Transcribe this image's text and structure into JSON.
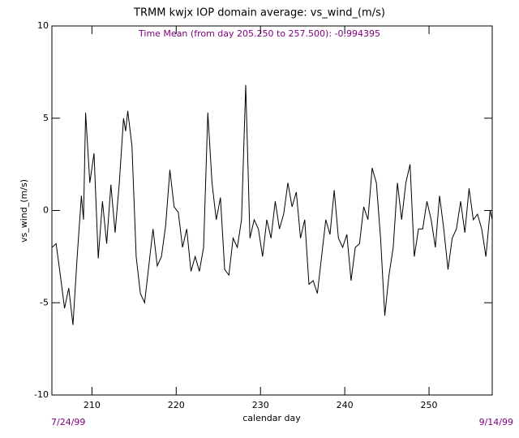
{
  "chart_data": {
    "type": "line",
    "title": "TRMM kwjx IOP domain average: vs_wind_(m/s)",
    "subtitle": "Time Mean (from day 205.250 to 257.500): -0.994395",
    "xlabel": "calendar day",
    "ylabel": "vs_wind_(m/s)",
    "start_label": "7/24/99",
    "end_label": "9/14/99",
    "x": [
      205.25,
      205.75,
      206.25,
      206.75,
      207.25,
      207.75,
      208.25,
      208.75,
      209.0,
      209.25,
      209.75,
      210.25,
      210.75,
      211.25,
      211.75,
      212.25,
      212.75,
      213.25,
      213.75,
      214.0,
      214.25,
      214.75,
      215.25,
      215.75,
      216.25,
      216.75,
      217.25,
      217.75,
      218.25,
      218.75,
      219.25,
      219.75,
      220.25,
      220.75,
      221.25,
      221.75,
      222.25,
      222.75,
      223.25,
      223.75,
      224.25,
      224.75,
      225.25,
      225.75,
      226.25,
      226.75,
      227.25,
      227.75,
      228.25,
      228.75,
      229.25,
      229.75,
      230.25,
      230.75,
      231.25,
      231.75,
      232.25,
      232.75,
      233.25,
      233.75,
      234.25,
      234.75,
      235.25,
      235.75,
      236.25,
      236.75,
      237.25,
      237.75,
      238.25,
      238.75,
      239.25,
      239.75,
      240.25,
      240.75,
      241.25,
      241.75,
      242.25,
      242.75,
      243.25,
      243.75,
      244.25,
      244.75,
      245.25,
      245.75,
      246.25,
      246.75,
      247.25,
      247.75,
      248.25,
      248.75,
      249.25,
      249.75,
      250.25,
      250.75,
      251.25,
      251.75,
      252.25,
      252.75,
      253.25,
      253.75,
      254.25,
      254.75,
      255.25,
      255.75,
      256.25,
      256.75,
      257.25,
      257.5
    ],
    "series": [
      {
        "name": "vs_wind_(m/s)",
        "color": "#000000",
        "values": [
          -2,
          -1.8,
          -3.5,
          -5.3,
          -4.2,
          -6.2,
          -2.5,
          0.8,
          -0.5,
          5.3,
          1.5,
          3.1,
          -2.6,
          0.5,
          -1.8,
          1.4,
          -1.2,
          1.5,
          5.0,
          4.3,
          5.4,
          3.5,
          -2.5,
          -4.5,
          -5.0,
          -3.0,
          -1.0,
          -3.0,
          -2.5,
          -0.8,
          2.2,
          0.2,
          -0.1,
          -2.0,
          -1.0,
          -3.3,
          -2.5,
          -3.3,
          -2.0,
          5.3,
          1.5,
          -0.5,
          0.7,
          -3.2,
          -3.5,
          -1.5,
          -2.0,
          -0.5,
          6.8,
          -1.5,
          -0.5,
          -1.0,
          -2.5,
          -0.5,
          -1.5,
          0.5,
          -1.0,
          -0.2,
          1.5,
          0.2,
          1.0,
          -1.5,
          -0.5,
          -4.0,
          -3.8,
          -4.5,
          -2.5,
          -0.5,
          -1.3,
          1.1,
          -1.5,
          -2.0,
          -1.3,
          -3.8,
          -2.0,
          -1.8,
          0.2,
          -0.5,
          2.3,
          1.5,
          -1.5,
          -5.7,
          -3.5,
          -2.0,
          1.5,
          -0.5,
          1.5,
          2.5,
          -2.5,
          -1.0,
          -1.0,
          0.5,
          -0.5,
          -2.0,
          0.8,
          -1.0,
          -3.2,
          -1.5,
          -1.0,
          0.5,
          -1.2,
          1.2,
          -0.5,
          -0.2,
          -1.0,
          -2.5,
          0.0,
          -0.5
        ]
      }
    ],
    "xlim": [
      205.25,
      257.5
    ],
    "ylim": [
      -10,
      10
    ],
    "xticks": [
      210,
      220,
      230,
      240,
      250
    ],
    "yticks": [
      -10,
      -5,
      0,
      5,
      10
    ]
  }
}
